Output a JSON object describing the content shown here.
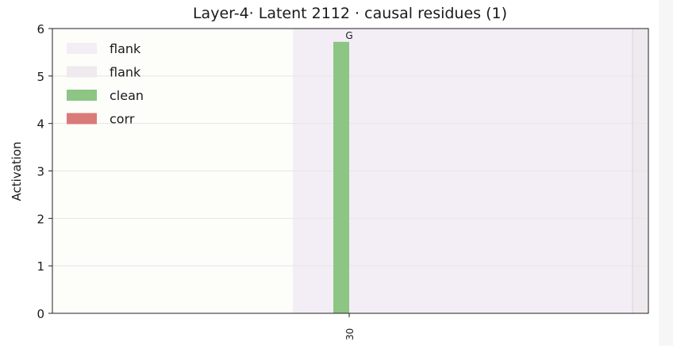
{
  "chart_data": {
    "type": "bar",
    "title": "Layer-4· Latent 2112 · causal residues (1)",
    "xlabel": "",
    "ylabel": "Activation",
    "ylim": [
      0,
      6
    ],
    "yticks": [
      0,
      1,
      2,
      3,
      4,
      5,
      6
    ],
    "categories": [
      "30"
    ],
    "series": [
      {
        "name": "clean",
        "color": "#8cc584",
        "values": [
          5.72
        ]
      },
      {
        "name": "corr",
        "color": "#d97b78",
        "values": [
          0
        ]
      }
    ],
    "bar_labels": [
      "G"
    ],
    "shaded_regions": [
      {
        "name": "flank",
        "color": "#f3eef6"
      },
      {
        "name": "flank",
        "color": "#efeaee"
      }
    ],
    "legend": {
      "position": "top-left",
      "entries": [
        {
          "label": "flank",
          "color": "#f3eef6"
        },
        {
          "label": "flank",
          "color": "#efeaee"
        },
        {
          "label": "clean",
          "color": "#8cc584"
        },
        {
          "label": "corr",
          "color": "#d97b78"
        }
      ]
    },
    "grid": true
  }
}
